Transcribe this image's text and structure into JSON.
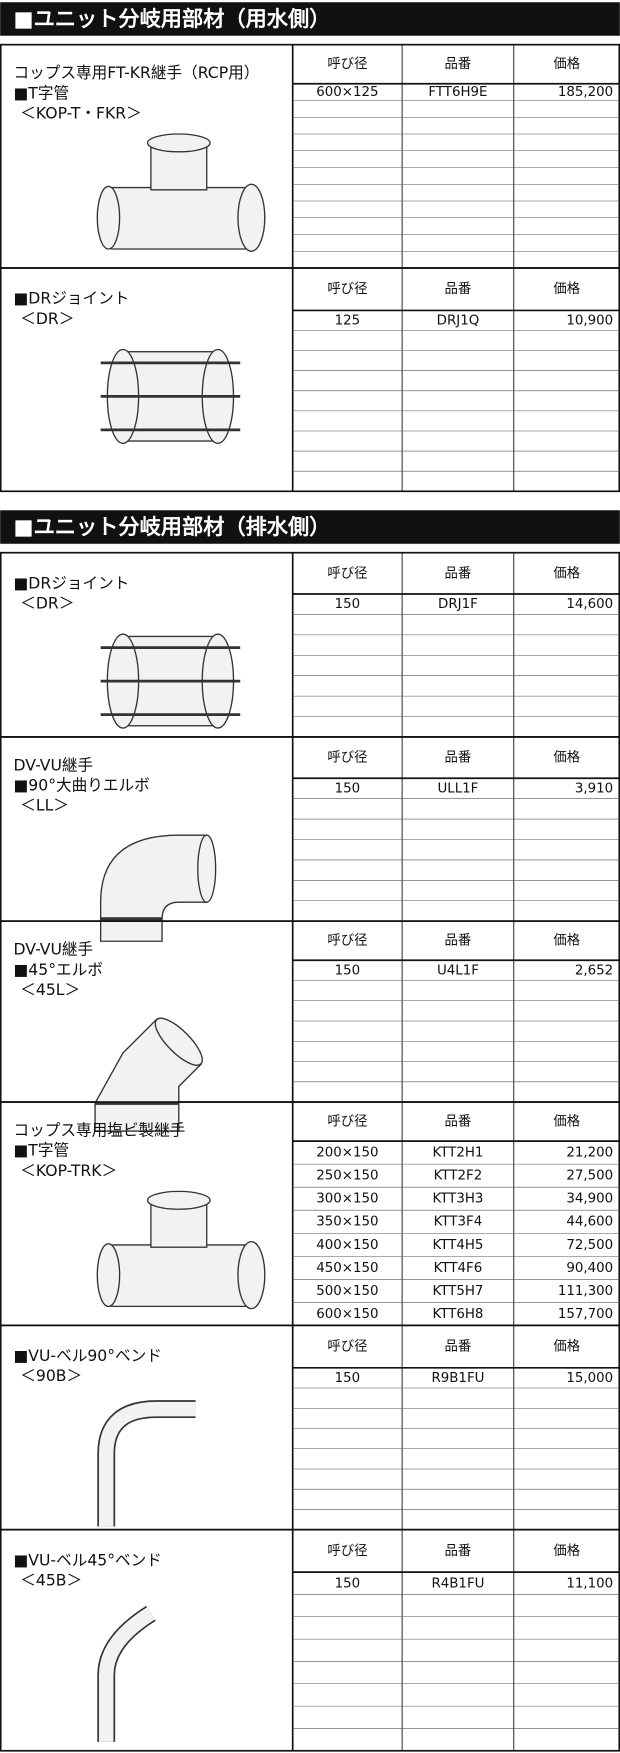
{
  "sections": [
    {
      "title": "■ユニット分岐用部材（用水側）",
      "items": [
        {
          "lines": [
            "コップス専用FT-KR継手（RCP用）",
            "■T字管",
            "＜KOP-T・FKR＞"
          ],
          "table": {
            "header": [
              "呼び径",
              "品番",
              "価格"
            ],
            "rows": [
              [
                "600×125",
                "FTT6H9E",
                "185,200"
              ]
            ]
          }
        },
        {
          "lines": [
            "■DRジョイント",
            "＜DR＞"
          ],
          "table": {
            "header": [
              "呼び径",
              "品番",
              "価格"
            ],
            "rows": [
              [
                "125",
                "DRJ1Q",
                "10,900"
              ]
            ]
          }
        }
      ]
    },
    {
      "title": "■ユニット分岐用部材（排水側）",
      "items": [
        {
          "lines": [
            "■DRジョイント",
            "＜DR＞"
          ],
          "table": {
            "header": [
              "呼び径",
              "品番",
              "価格"
            ],
            "rows": [
              [
                "150",
                "DRJ1F",
                "14,600"
              ]
            ]
          }
        },
        {
          "lines": [
            "DV-VU継手",
            "■90°大曲りエルボ",
            "＜LL＞"
          ],
          "table": {
            "header": [
              "呼び径",
              "品番",
              "価格"
            ],
            "rows": [
              [
                "150",
                "ULL1F",
                "3,910"
              ]
            ]
          }
        },
        {
          "lines": [
            "DV-VU継手",
            "■45°エルボ",
            "＜45L＞"
          ],
          "table": {
            "header": [
              "呼び径",
              "品番",
              "価格"
            ],
            "rows": [
              [
                "150",
                "U4L1F",
                "2,652"
              ]
            ]
          }
        },
        {
          "lines": [
            "コップス専用塩ビ製継手",
            "■T字管",
            "＜KOP-TRK＞"
          ],
          "table": {
            "header": [
              "呼び径",
              "品番",
              "価格"
            ],
            "rows": [
              [
                "200×150",
                "KTT2H1",
                "21,200"
              ],
              [
                "250×150",
                "KTT2F2",
                "27,500"
              ],
              [
                "300×150",
                "KTT3H3",
                "34,900"
              ],
              [
                "350×150",
                "KTT3F4",
                "44,600"
              ],
              [
                "400×150",
                "KTT4H5",
                "72,500"
              ],
              [
                "450×150",
                "KTT4F6",
                "90,400"
              ],
              [
                "500×150",
                "KTT5H7",
                "111,300"
              ],
              [
                "600×150",
                "KTT6H8",
                "157,700"
              ]
            ]
          }
        },
        {
          "lines": [
            "■VU-ベル90°ベンド",
            "＜90B＞"
          ],
          "table": {
            "header": [
              "呼び径",
              "品番",
              "価格"
            ],
            "rows": [
              [
                "150",
                "R9B1FU",
                "15,000"
              ]
            ]
          }
        },
        {
          "lines": [
            "■VU-ベル45°ベンド",
            "＜45B＞"
          ],
          "table": {
            "header": [
              "呼び径",
              "品番",
              "価格"
            ],
            "rows": [
              [
                "150",
                "R4B1FU",
                "11,100"
              ]
            ]
          }
        }
      ]
    }
  ]
}
